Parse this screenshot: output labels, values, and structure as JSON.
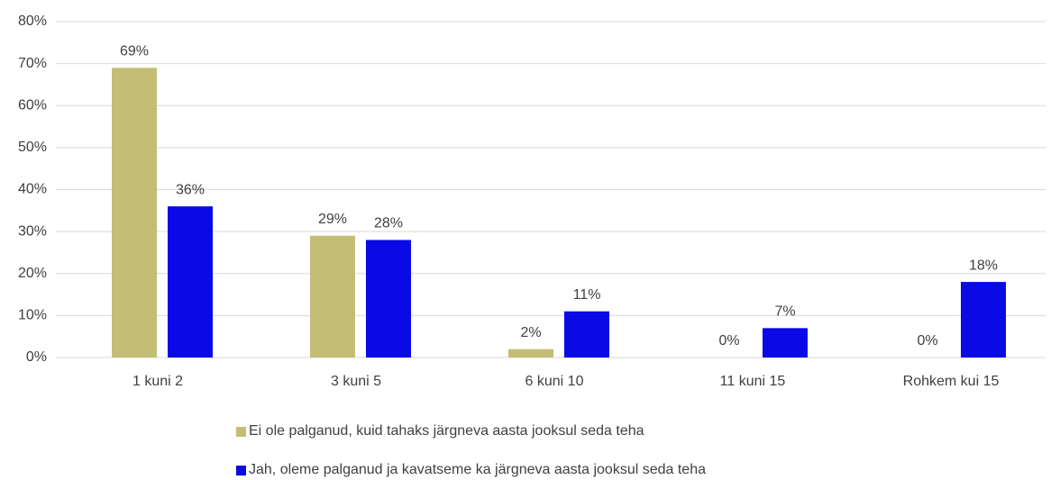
{
  "chart_data": {
    "type": "bar",
    "categories": [
      "1 kuni 2",
      "3 kuni 5",
      "6 kuni 10",
      "11 kuni 15",
      "Rohkem kui 15"
    ],
    "series": [
      {
        "name": "Ei ole palganud, kuid tahaks järgneva aasta jooksul seda teha",
        "color": "#c4bd76",
        "values": [
          69,
          29,
          2,
          0,
          0
        ],
        "value_labels": [
          "69%",
          "29%",
          "2%",
          "0%",
          "0%"
        ]
      },
      {
        "name": "Jah, oleme palganud ja kavatseme ka järgneva aasta jooksul seda teha",
        "color": "#0a0ae6",
        "values": [
          36,
          28,
          11,
          7,
          18
        ],
        "value_labels": [
          "36%",
          "28%",
          "11%",
          "7%",
          "18%"
        ]
      }
    ],
    "ylim": [
      0,
      80
    ],
    "yticks": [
      {
        "value": 0,
        "label": "0%"
      },
      {
        "value": 10,
        "label": "10%"
      },
      {
        "value": 20,
        "label": "20%"
      },
      {
        "value": 30,
        "label": "30%"
      },
      {
        "value": 40,
        "label": "40%"
      },
      {
        "value": 50,
        "label": "50%"
      },
      {
        "value": 60,
        "label": "60%"
      },
      {
        "value": 70,
        "label": "70%"
      },
      {
        "value": 80,
        "label": "80%"
      }
    ],
    "grid": true,
    "legend": "bottom"
  }
}
